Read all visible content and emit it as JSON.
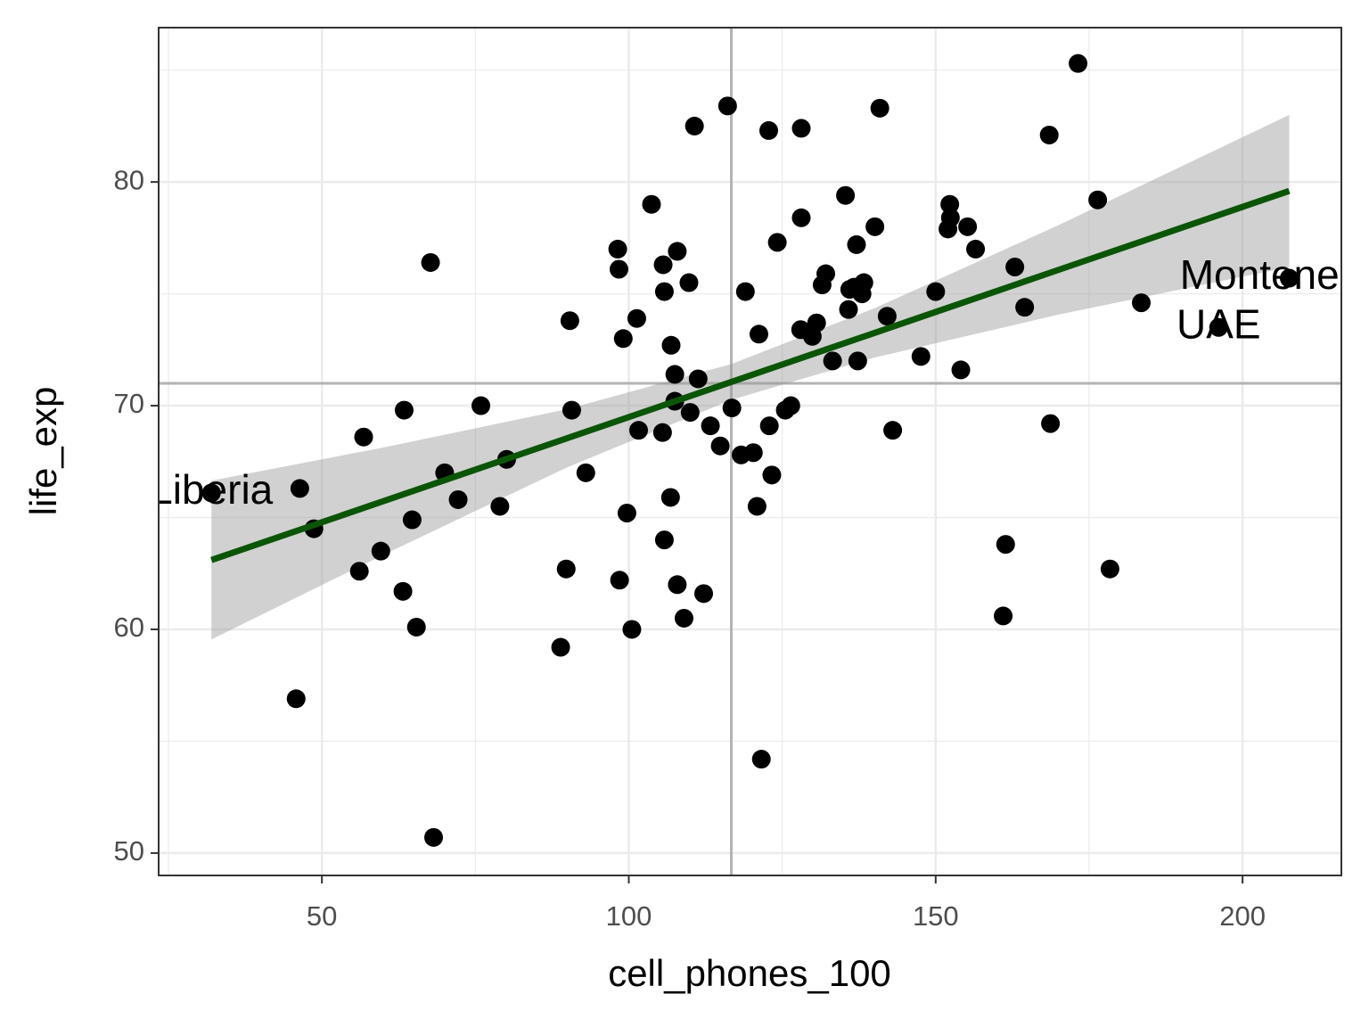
{
  "chart_data": {
    "type": "scatter",
    "x_label": "cell_phones_100",
    "y_label": "life_exp",
    "color": "#000000",
    "xlim": [
      23.4,
      216.1
    ],
    "ylim": [
      49.0,
      86.9
    ],
    "xticks": [
      50,
      100,
      150,
      200
    ],
    "yticks": [
      50,
      60,
      70,
      80
    ],
    "xminor": [
      25,
      75,
      125,
      175
    ],
    "yminor": [
      55,
      65,
      75,
      85
    ],
    "grid": true,
    "x": [
      32.0,
      46.4,
      45.8,
      48.7,
      56.1,
      56.8,
      59.6,
      63.2,
      63.4,
      64.7,
      65.4,
      67.7,
      68.2,
      70.0,
      72.2,
      75.9,
      79.0,
      80.1,
      88.9,
      89.8,
      90.4,
      90.7,
      93.0,
      98.2,
      98.4,
      98.5,
      99.1,
      99.7,
      100.5,
      101.3,
      101.6,
      103.7,
      105.6,
      105.8,
      105.5,
      105.8,
      106.8,
      106.9,
      107.5,
      107.5,
      107.9,
      107.9,
      109.0,
      109.8,
      110.0,
      110.7,
      111.3,
      112.2,
      113.3,
      114.9,
      116.1,
      116.8,
      118.3,
      119.0,
      120.3,
      120.9,
      121.2,
      121.6,
      122.8,
      122.9,
      123.3,
      124.2,
      125.5,
      126.4,
      128.0,
      128.1,
      128.1,
      129.9,
      130.6,
      131.5,
      132.1,
      133.2,
      135.3,
      135.8,
      136.0,
      136.7,
      137.1,
      137.3,
      138.0,
      138.3,
      140.1,
      140.9,
      142.1,
      143.0,
      147.6,
      150.0,
      152.3,
      152.4,
      152.0,
      155.2,
      156.5,
      154.1,
      161.0,
      161.4,
      162.9,
      164.5,
      168.5,
      168.7,
      173.2,
      176.4,
      178.4,
      183.5,
      196.1,
      207.6
    ],
    "y": [
      66.1,
      66.3,
      56.9,
      64.5,
      62.6,
      68.6,
      63.5,
      61.7,
      69.8,
      64.9,
      60.1,
      76.4,
      50.7,
      67.0,
      65.8,
      70.0,
      65.5,
      67.6,
      59.2,
      62.7,
      73.8,
      69.8,
      67.0,
      77.0,
      76.1,
      62.2,
      73.0,
      65.2,
      60.0,
      73.9,
      68.9,
      79.0,
      76.3,
      75.1,
      68.8,
      64.0,
      65.9,
      72.7,
      71.4,
      70.2,
      76.9,
      62.0,
      60.5,
      75.5,
      69.7,
      82.5,
      71.2,
      61.6,
      69.1,
      68.2,
      83.4,
      69.9,
      67.8,
      75.1,
      67.9,
      65.5,
      73.2,
      54.2,
      82.3,
      69.1,
      66.9,
      77.3,
      69.8,
      70.0,
      73.4,
      82.4,
      78.4,
      73.1,
      73.7,
      75.4,
      75.9,
      72.0,
      79.4,
      74.3,
      75.2,
      75.3,
      77.2,
      72.0,
      75.0,
      75.5,
      78.0,
      83.3,
      74.0,
      68.9,
      72.2,
      75.1,
      79.0,
      78.4,
      77.9,
      78.0,
      77.0,
      71.6,
      60.6,
      63.8,
      76.2,
      74.4,
      82.1,
      69.2,
      85.3,
      79.2,
      62.7,
      74.6,
      73.5,
      75.7
    ],
    "fit": {
      "color": "#0b5507",
      "band_color": "#999999",
      "x": [
        32.0,
        60,
        90,
        116.7,
        140,
        170,
        207.6
      ],
      "y": [
        63.1,
        65.73,
        68.55,
        71.06,
        73.25,
        76.07,
        79.6
      ],
      "lower": [
        59.55,
        63.33,
        67.25,
        70.26,
        72.15,
        74.07,
        76.2
      ],
      "upper": [
        66.65,
        68.13,
        69.85,
        71.86,
        74.35,
        78.07,
        83.0
      ]
    },
    "ref_lines": {
      "x": 116.7,
      "y": 71.0,
      "color": "#b3b3b3"
    },
    "annotations": [
      {
        "text": "Liberia",
        "x": 32.0,
        "y": 66.1
      },
      {
        "text": "Montenegro",
        "x": 207.6,
        "y": 75.7
      },
      {
        "text": "UAE",
        "x": 196.1,
        "y": 73.5
      }
    ]
  }
}
